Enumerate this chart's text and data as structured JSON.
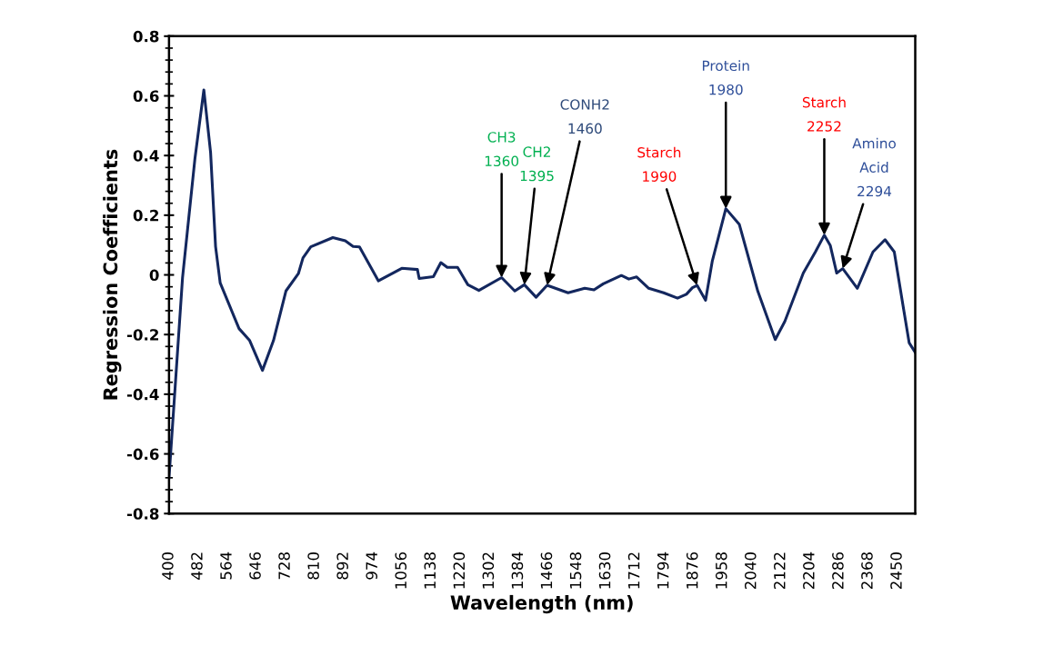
{
  "chart_data": {
    "type": "line",
    "xlabel": "Wavelength (nm)",
    "ylabel": "Regression Coefficients",
    "xlim": [
      400,
      2500
    ],
    "xticks": [
      400,
      482,
      564,
      646,
      728,
      810,
      892,
      974,
      1056,
      1138,
      1220,
      1302,
      1384,
      1466,
      1548,
      1630,
      1712,
      1794,
      1876,
      1958,
      2040,
      2122,
      2204,
      2286,
      2368,
      2450
    ],
    "ylim": [
      -0.8,
      0.8
    ],
    "yticks": [
      -0.8,
      -0.6,
      -0.4,
      -0.2,
      0,
      0.2,
      0.4,
      0.6,
      0.8
    ],
    "grid": false,
    "marker": "none",
    "line_style": "solid",
    "series": [
      {
        "color": "#13275e",
        "x": [
          400,
          438,
          473,
          498,
          517,
          531,
          544,
          597,
          627,
          663,
          694,
          729,
          764,
          777,
          799,
          861,
          896,
          918,
          936,
          989,
          1055,
          1099,
          1104,
          1144,
          1165,
          1183,
          1212,
          1241,
          1272,
          1336,
          1373,
          1400,
          1433,
          1464,
          1523,
          1570,
          1596,
          1622,
          1673,
          1694,
          1716,
          1750,
          1792,
          1831,
          1856,
          1873,
          1886,
          1910,
          1929,
          1967,
          2005,
          2057,
          2106,
          2133,
          2185,
          2219,
          2244,
          2261,
          2279,
          2296,
          2337,
          2381,
          2415,
          2441,
          2466,
          2483,
          2500
        ],
        "values": [
          -0.68,
          -0.01,
          0.39,
          0.62,
          0.41,
          0.095,
          -0.027,
          -0.18,
          -0.22,
          -0.32,
          -0.22,
          -0.054,
          0.004,
          0.057,
          0.094,
          0.125,
          0.114,
          0.095,
          0.094,
          -0.02,
          0.022,
          0.018,
          -0.012,
          -0.006,
          0.041,
          0.025,
          0.025,
          -0.033,
          -0.052,
          -0.009,
          -0.054,
          -0.033,
          -0.075,
          -0.035,
          -0.06,
          -0.045,
          -0.05,
          -0.03,
          -0.002,
          -0.014,
          -0.007,
          -0.045,
          -0.06,
          -0.078,
          -0.065,
          -0.043,
          -0.035,
          -0.085,
          0.047,
          0.222,
          0.169,
          -0.055,
          -0.217,
          -0.156,
          0.006,
          0.077,
          0.133,
          0.098,
          0.006,
          0.021,
          -0.045,
          0.077,
          0.118,
          0.077,
          -0.106,
          -0.228,
          -0.26
        ]
      }
    ],
    "annotations": [
      {
        "text": "CH3\n1360",
        "x": 1336,
        "y": -0.009
      },
      {
        "text": "CH2\n1395",
        "x": 1400,
        "y": -0.033
      },
      {
        "text": "CONH2\n1460",
        "x": 1464,
        "y": -0.035
      },
      {
        "text": "Starch\n1990",
        "x": 1886,
        "y": -0.035
      },
      {
        "text": "Protein\n1980",
        "x": 1967,
        "y": 0.222
      },
      {
        "text": "Starch\n2252",
        "x": 2244,
        "y": 0.133
      },
      {
        "text": "Amino\nAcid\n2294",
        "x": 2296,
        "y": 0.021
      }
    ]
  }
}
